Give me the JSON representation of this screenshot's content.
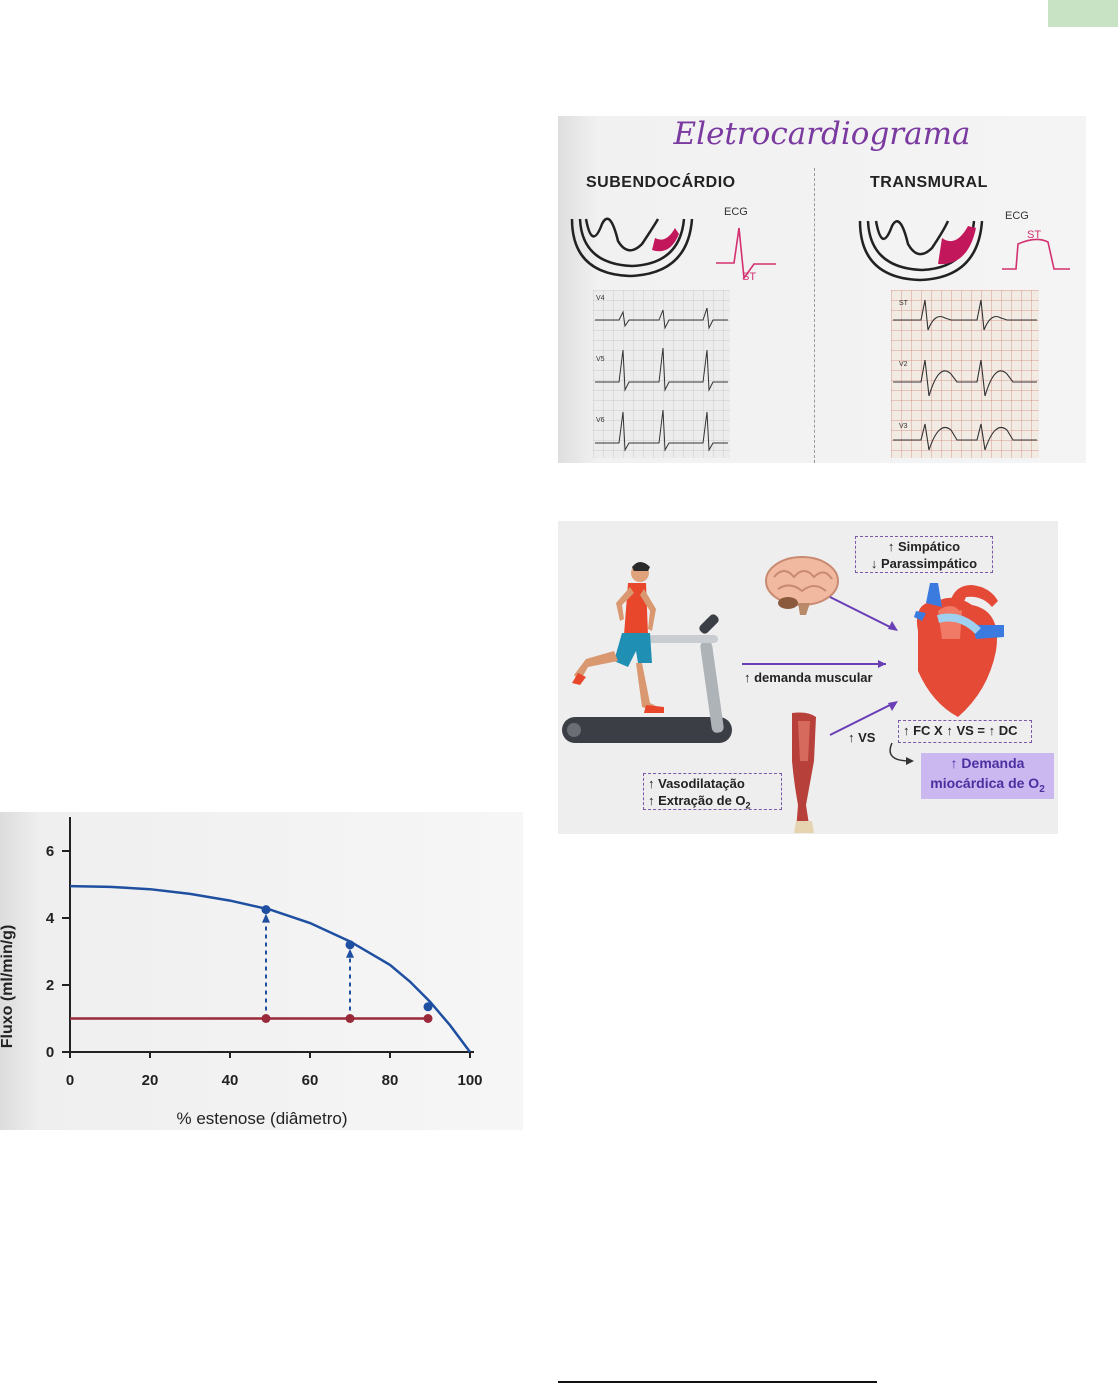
{
  "ecg": {
    "title": "Eletrocardiograma",
    "left_heading": "SUBENDOCÁRDIO",
    "right_heading": "TRANSMURAL",
    "ecg_label": "ECG",
    "st_label": "ST",
    "left_leads": [
      "V4",
      "V5",
      "V6"
    ],
    "right_leads": [
      "ST",
      "V2",
      "V3"
    ]
  },
  "exercise": {
    "sympathetic": "↑ Simpático",
    "parasympathetic": "↓ Parassimpático",
    "muscle_demand": "↑ demanda muscular",
    "vs": "↑ VS",
    "formula": "↑ FC X ↑ VS = ↑ DC",
    "vasodilation": "↑ Vasodilatação",
    "extraction": "↑ Extração de O",
    "extraction_sub": "2",
    "demand_line1": "↑ Demanda",
    "demand_line2": "miocárdica de O",
    "demand_sub": "2",
    "colors": {
      "arrow": "#6a3fb5",
      "demand_box": "#cbb8f0",
      "demand_text": "#4a2fa0"
    }
  },
  "chart_data": {
    "type": "line",
    "xlabel": "% estenose (diâmetro)",
    "ylabel": "Fluxo (ml/min/g)",
    "xlim": [
      0,
      100
    ],
    "ylim": [
      0,
      6
    ],
    "x_ticks": [
      0,
      20,
      40,
      60,
      80,
      100
    ],
    "y_ticks": [
      0,
      2,
      4,
      6
    ],
    "series": [
      {
        "color": "#1f4fa0",
        "x": [
          0,
          10,
          20,
          30,
          40,
          50,
          60,
          70,
          80,
          85,
          90,
          95,
          100
        ],
        "y": [
          4.95,
          4.93,
          4.86,
          4.72,
          4.52,
          4.25,
          3.85,
          3.3,
          2.6,
          2.1,
          1.5,
          0.8,
          0.0
        ],
        "markers": [
          {
            "x": 49,
            "y": 4.25
          },
          {
            "x": 70,
            "y": 3.2
          },
          {
            "x": 89.5,
            "y": 1.35
          }
        ]
      },
      {
        "color": "#9a2a3a",
        "x": [
          0,
          90
        ],
        "y": [
          1.0,
          1.0
        ],
        "markers": [
          {
            "x": 49,
            "y": 1.0
          },
          {
            "x": 70,
            "y": 1.0
          },
          {
            "x": 89.5,
            "y": 1.0
          }
        ]
      }
    ],
    "annotations": [
      {
        "type": "dashed-arrow",
        "x": 49,
        "from_y": 1.0,
        "to_y": 4.25
      },
      {
        "type": "dashed-arrow",
        "x": 70,
        "from_y": 1.0,
        "to_y": 3.2
      }
    ],
    "grid": false
  }
}
